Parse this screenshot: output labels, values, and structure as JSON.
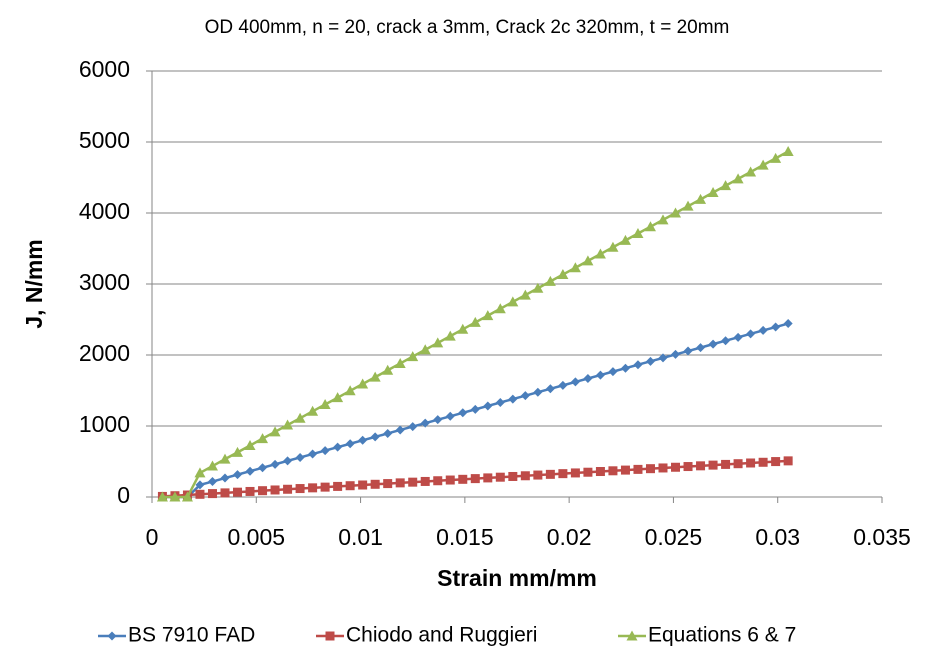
{
  "chart_data": {
    "type": "line",
    "title": "OD  400mm, n = 20, crack a  3mm, Crack 2c  320mm, t = 20mm",
    "x_label": "Strain mm/mm",
    "y_label": "J, N/mm",
    "x": [
      0.0005,
      0.0011,
      0.0017,
      0.0023,
      0.0029,
      0.0035,
      0.0041,
      0.0047,
      0.0053,
      0.0059,
      0.0065,
      0.0071,
      0.0077,
      0.0083,
      0.0089,
      0.0095,
      0.0101,
      0.0107,
      0.0113,
      0.0119,
      0.0125,
      0.0131,
      0.0137,
      0.0143,
      0.0149,
      0.0155,
      0.0161,
      0.0167,
      0.0173,
      0.0179,
      0.0185,
      0.0191,
      0.0197,
      0.0203,
      0.0209,
      0.0215,
      0.0221,
      0.0227,
      0.0233,
      0.0239,
      0.0245,
      0.0251,
      0.0257,
      0.0263,
      0.0269,
      0.0275,
      0.0281,
      0.0287,
      0.0293,
      0.0299,
      0.0305
    ],
    "series": [
      {
        "name": "BS 7910 FAD",
        "color": "#4a7ebb",
        "marker": "diamond",
        "values": [
          0,
          0,
          0,
          170,
          218,
          267,
          315,
          363,
          412,
          460,
          509,
          557,
          605,
          654,
          702,
          750,
          799,
          847,
          895,
          944,
          992,
          1040,
          1089,
          1137,
          1186,
          1234,
          1282,
          1331,
          1379,
          1427,
          1476,
          1524,
          1572,
          1621,
          1669,
          1717,
          1766,
          1814,
          1863,
          1911,
          1959,
          2008,
          2056,
          2104,
          2153,
          2201,
          2249,
          2298,
          2346,
          2394,
          2443
        ]
      },
      {
        "name": "Chiodo and Ruggieri",
        "color": "#be4b48",
        "marker": "square",
        "values": [
          8,
          18,
          28,
          38,
          48,
          58,
          68,
          78,
          89,
          99,
          109,
          119,
          129,
          139,
          149,
          159,
          169,
          179,
          189,
          199,
          209,
          219,
          229,
          239,
          249,
          259,
          269,
          279,
          289,
          299,
          309,
          319,
          329,
          339,
          349,
          359,
          369,
          379,
          389,
          399,
          409,
          419,
          429,
          439,
          449,
          459,
          469,
          479,
          489,
          499,
          509
        ]
      },
      {
        "name": "Equations 6 & 7",
        "color": "#98b954",
        "marker": "triangle",
        "values": [
          0,
          0,
          0,
          340,
          436,
          533,
          629,
          725,
          822,
          918,
          1014,
          1110,
          1207,
          1303,
          1399,
          1496,
          1592,
          1688,
          1785,
          1881,
          1977,
          2074,
          2170,
          2266,
          2362,
          2459,
          2555,
          2651,
          2748,
          2844,
          2940,
          3037,
          3133,
          3229,
          3326,
          3422,
          3518,
          3614,
          3711,
          3807,
          3903,
          4000,
          4096,
          4192,
          4289,
          4385,
          4481,
          4577,
          4674,
          4770,
          4866
        ]
      }
    ],
    "xlim": [
      0,
      0.035
    ],
    "xticks": [
      0,
      0.005,
      0.01,
      0.015,
      0.02,
      0.025,
      0.03,
      0.035
    ],
    "ylim": [
      0,
      6000
    ],
    "yticks": [
      0,
      1000,
      2000,
      3000,
      4000,
      5000,
      6000
    ],
    "grid": true,
    "legend": "bottom"
  }
}
